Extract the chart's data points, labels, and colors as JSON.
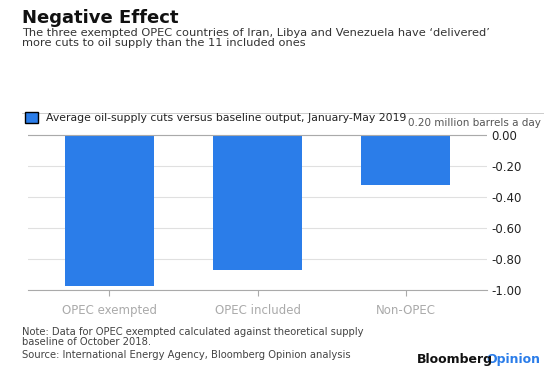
{
  "title": "Negative Effect",
  "subtitle_line1": "The three exempted OPEC countries of Iran, Libya and Venezuela have ‘delivered’",
  "subtitle_line2": "more cuts to oil supply than the 11 included ones",
  "legend_label": "Average oil-supply cuts versus baseline output, January-May 2019",
  "ylabel": "0.20 million barrels a day",
  "categories": [
    "OPEC exempted",
    "OPEC included",
    "Non-OPEC"
  ],
  "values": [
    -0.97,
    -0.87,
    -0.32
  ],
  "bar_color": "#2b7de9",
  "ylim": [
    -1.0,
    0.05
  ],
  "yticks": [
    0.0,
    -0.2,
    -0.4,
    -0.6,
    -0.8,
    -1.0
  ],
  "note_line1": "Note: Data for OPEC exempted calculated against theoretical supply",
  "note_line2": "baseline of October 2018.",
  "source": "Source: International Energy Agency, Bloomberg Opinion analysis",
  "bloomberg": "Bloomberg",
  "opinion": "Opinion",
  "bloomberg_color": "#111111",
  "opinion_color": "#2b7de9",
  "bg_color": "#ffffff",
  "bar_width": 0.6,
  "grid_color": "#e0e0e0"
}
